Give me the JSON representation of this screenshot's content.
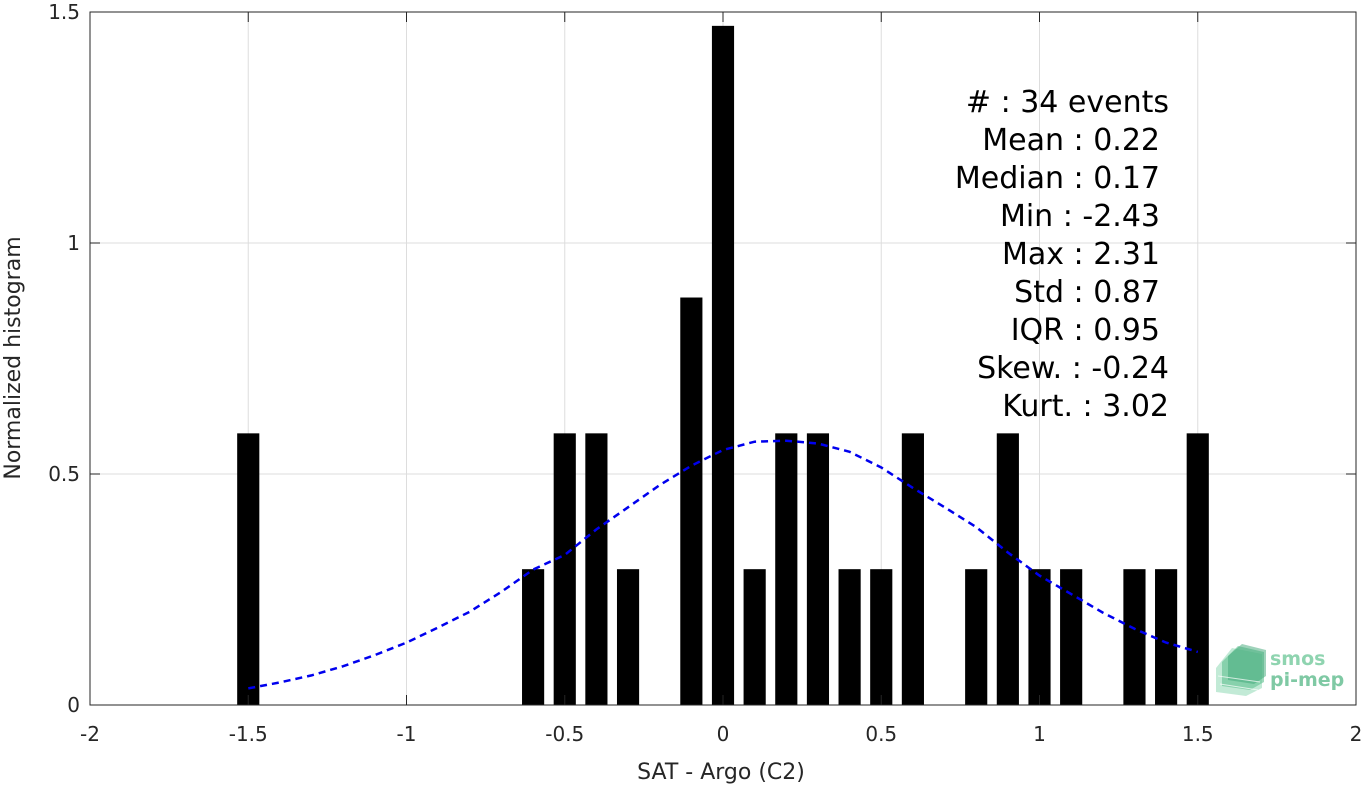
{
  "chart_data": {
    "type": "bar",
    "xlabel": "SAT - Argo (C2)",
    "ylabel": "Normalized histogram",
    "xlim": [
      -2,
      2
    ],
    "ylim": [
      0,
      1.5
    ],
    "x_ticks": [
      -2,
      -1.5,
      -1,
      -0.5,
      0,
      0.5,
      1,
      1.5,
      2
    ],
    "x_tick_labels": [
      "-2",
      "-1.5",
      "-1",
      "-0.5",
      "0",
      "0.5",
      "1",
      "1.5",
      "2"
    ],
    "y_ticks": [
      0,
      0.5,
      1,
      1.5
    ],
    "y_tick_labels": [
      "0",
      "0.5",
      "1",
      "1.5"
    ],
    "grid": true,
    "bar_color": "#000000",
    "bar_width": 0.07,
    "bars": [
      {
        "x": -1.5,
        "y": 0.588
      },
      {
        "x": -0.6,
        "y": 0.294
      },
      {
        "x": -0.5,
        "y": 0.588
      },
      {
        "x": -0.4,
        "y": 0.588
      },
      {
        "x": -0.3,
        "y": 0.294
      },
      {
        "x": -0.1,
        "y": 0.882
      },
      {
        "x": 0.0,
        "y": 1.47
      },
      {
        "x": 0.1,
        "y": 0.294
      },
      {
        "x": 0.2,
        "y": 0.588
      },
      {
        "x": 0.3,
        "y": 0.588
      },
      {
        "x": 0.4,
        "y": 0.294
      },
      {
        "x": 0.5,
        "y": 0.294
      },
      {
        "x": 0.6,
        "y": 0.588
      },
      {
        "x": 0.8,
        "y": 0.294
      },
      {
        "x": 0.9,
        "y": 0.588
      },
      {
        "x": 1.0,
        "y": 0.294
      },
      {
        "x": 1.1,
        "y": 0.294
      },
      {
        "x": 1.3,
        "y": 0.294
      },
      {
        "x": 1.4,
        "y": 0.294
      },
      {
        "x": 1.5,
        "y": 0.588
      }
    ],
    "fit_curve": {
      "style": "dashed",
      "color": "#0000ee",
      "mean": 0.22,
      "std": 0.87,
      "x_range": [
        -1.5,
        1.5
      ],
      "points": [
        [
          -1.5,
          0.036
        ],
        [
          -1.4,
          0.049
        ],
        [
          -1.3,
          0.064
        ],
        [
          -1.2,
          0.084
        ],
        [
          -1.1,
          0.108
        ],
        [
          -1.0,
          0.135
        ],
        [
          -0.9,
          0.168
        ],
        [
          -0.8,
          0.202
        ],
        [
          -0.7,
          0.245
        ],
        [
          -0.6,
          0.293
        ],
        [
          -0.5,
          0.325
        ],
        [
          -0.4,
          0.38
        ],
        [
          -0.3,
          0.428
        ],
        [
          -0.2,
          0.476
        ],
        [
          -0.1,
          0.518
        ],
        [
          0.0,
          0.552
        ],
        [
          0.1,
          0.57
        ],
        [
          0.2,
          0.572
        ],
        [
          0.3,
          0.566
        ],
        [
          0.4,
          0.548
        ],
        [
          0.5,
          0.514
        ],
        [
          0.6,
          0.47
        ],
        [
          0.7,
          0.428
        ],
        [
          0.8,
          0.385
        ],
        [
          0.9,
          0.33
        ],
        [
          1.0,
          0.28
        ],
        [
          1.1,
          0.24
        ],
        [
          1.2,
          0.2
        ],
        [
          1.3,
          0.165
        ],
        [
          1.4,
          0.135
        ],
        [
          1.5,
          0.115
        ]
      ]
    },
    "stats": [
      {
        "label": "#  : 34 events"
      },
      {
        "label": "Mean : 0.22"
      },
      {
        "label": "Median : 0.17"
      },
      {
        "label": "Min : -2.43"
      },
      {
        "label": "Max : 2.31"
      },
      {
        "label": "Std : 0.87"
      },
      {
        "label": "IQR : 0.95"
      },
      {
        "label": "Skew. : -0.24"
      },
      {
        "label": "Kurt. : 3.02"
      }
    ]
  },
  "logo": {
    "line1": "smos",
    "line2": "pi-mep",
    "color": "#5fbf8f"
  }
}
